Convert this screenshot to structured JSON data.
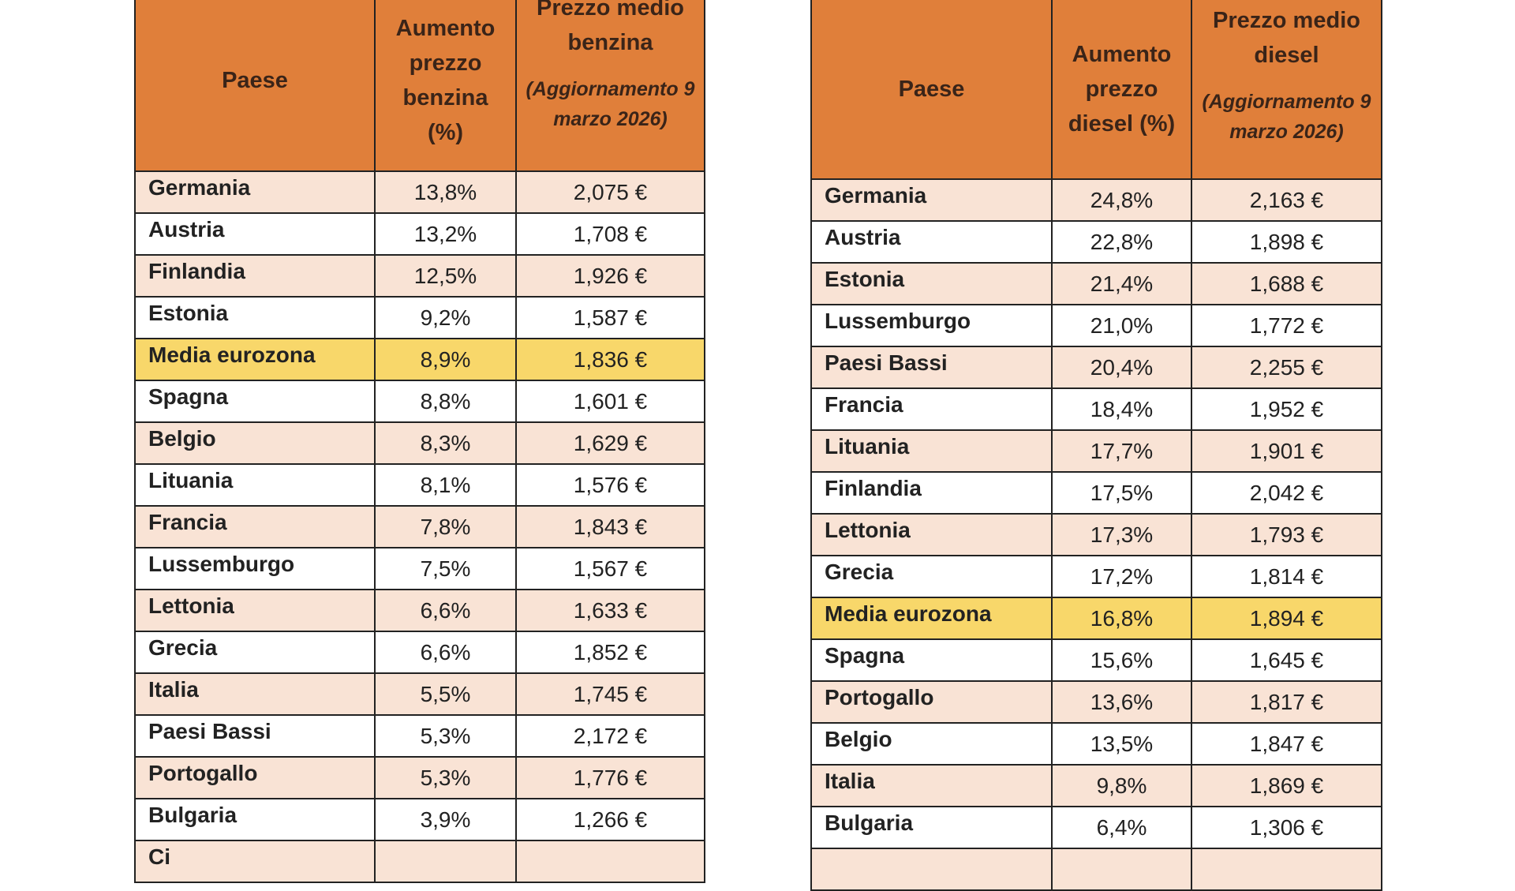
{
  "benzina": {
    "headers": {
      "country": "Paese",
      "increase": "Aumento prezzo benzina (%)",
      "price": "Prezzo medio benzina",
      "price_note": "(Aggiornamento 9 marzo 2026)"
    },
    "rows": [
      {
        "country": "Germania",
        "increase": "13,8%",
        "price": "2,075 €"
      },
      {
        "country": "Austria",
        "increase": "13,2%",
        "price": "1,708 €"
      },
      {
        "country": "Finlandia",
        "increase": "12,5%",
        "price": "1,926 €"
      },
      {
        "country": "Estonia",
        "increase": "9,2%",
        "price": "1,587 €"
      },
      {
        "country": "Media eurozona",
        "increase": "8,9%",
        "price": "1,836 €",
        "highlight": true
      },
      {
        "country": "Spagna",
        "increase": "8,8%",
        "price": "1,601 €"
      },
      {
        "country": "Belgio",
        "increase": "8,3%",
        "price": "1,629 €"
      },
      {
        "country": "Lituania",
        "increase": "8,1%",
        "price": "1,576 €"
      },
      {
        "country": "Francia",
        "increase": "7,8%",
        "price": "1,843 €"
      },
      {
        "country": "Lussemburgo",
        "increase": "7,5%",
        "price": "1,567 €"
      },
      {
        "country": "Lettonia",
        "increase": "6,6%",
        "price": "1,633 €"
      },
      {
        "country": "Grecia",
        "increase": "6,6%",
        "price": "1,852 €"
      },
      {
        "country": "Italia",
        "increase": "5,5%",
        "price": "1,745 €"
      },
      {
        "country": "Paesi Bassi",
        "increase": "5,3%",
        "price": "2,172 €"
      },
      {
        "country": "Portogallo",
        "increase": "5,3%",
        "price": "1,776 €"
      },
      {
        "country": "Bulgaria",
        "increase": "3,9%",
        "price": "1,266 €"
      },
      {
        "country": "Ci",
        "increase": "",
        "price": ""
      }
    ]
  },
  "diesel": {
    "headers": {
      "country": "Paese",
      "increase": "Aumento prezzo diesel (%)",
      "price": "Prezzo medio diesel",
      "price_note": "(Aggiornamento 9 marzo 2026)"
    },
    "rows": [
      {
        "country": "Germania",
        "increase": "24,8%",
        "price": "2,163 €"
      },
      {
        "country": "Austria",
        "increase": "22,8%",
        "price": "1,898 €"
      },
      {
        "country": "Estonia",
        "increase": "21,4%",
        "price": "1,688 €"
      },
      {
        "country": "Lussemburgo",
        "increase": "21,0%",
        "price": "1,772 €"
      },
      {
        "country": "Paesi Bassi",
        "increase": "20,4%",
        "price": "2,255 €"
      },
      {
        "country": "Francia",
        "increase": "18,4%",
        "price": "1,952 €"
      },
      {
        "country": "Lituania",
        "increase": "17,7%",
        "price": "1,901 €"
      },
      {
        "country": "Finlandia",
        "increase": "17,5%",
        "price": "2,042 €"
      },
      {
        "country": "Lettonia",
        "increase": "17,3%",
        "price": "1,793 €"
      },
      {
        "country": "Grecia",
        "increase": "17,2%",
        "price": "1,814 €"
      },
      {
        "country": "Media eurozona",
        "increase": "16,8%",
        "price": "1,894 €",
        "highlight": true
      },
      {
        "country": "Spagna",
        "increase": "15,6%",
        "price": "1,645 €"
      },
      {
        "country": "Portogallo",
        "increase": "13,6%",
        "price": "1,817 €"
      },
      {
        "country": "Belgio",
        "increase": "13,5%",
        "price": "1,847 €"
      },
      {
        "country": "Italia",
        "increase": "9,8%",
        "price": "1,869 €"
      },
      {
        "country": "Bulgaria",
        "increase": "6,4%",
        "price": "1,306 €"
      },
      {
        "country": "",
        "increase": "",
        "price": ""
      }
    ]
  }
}
